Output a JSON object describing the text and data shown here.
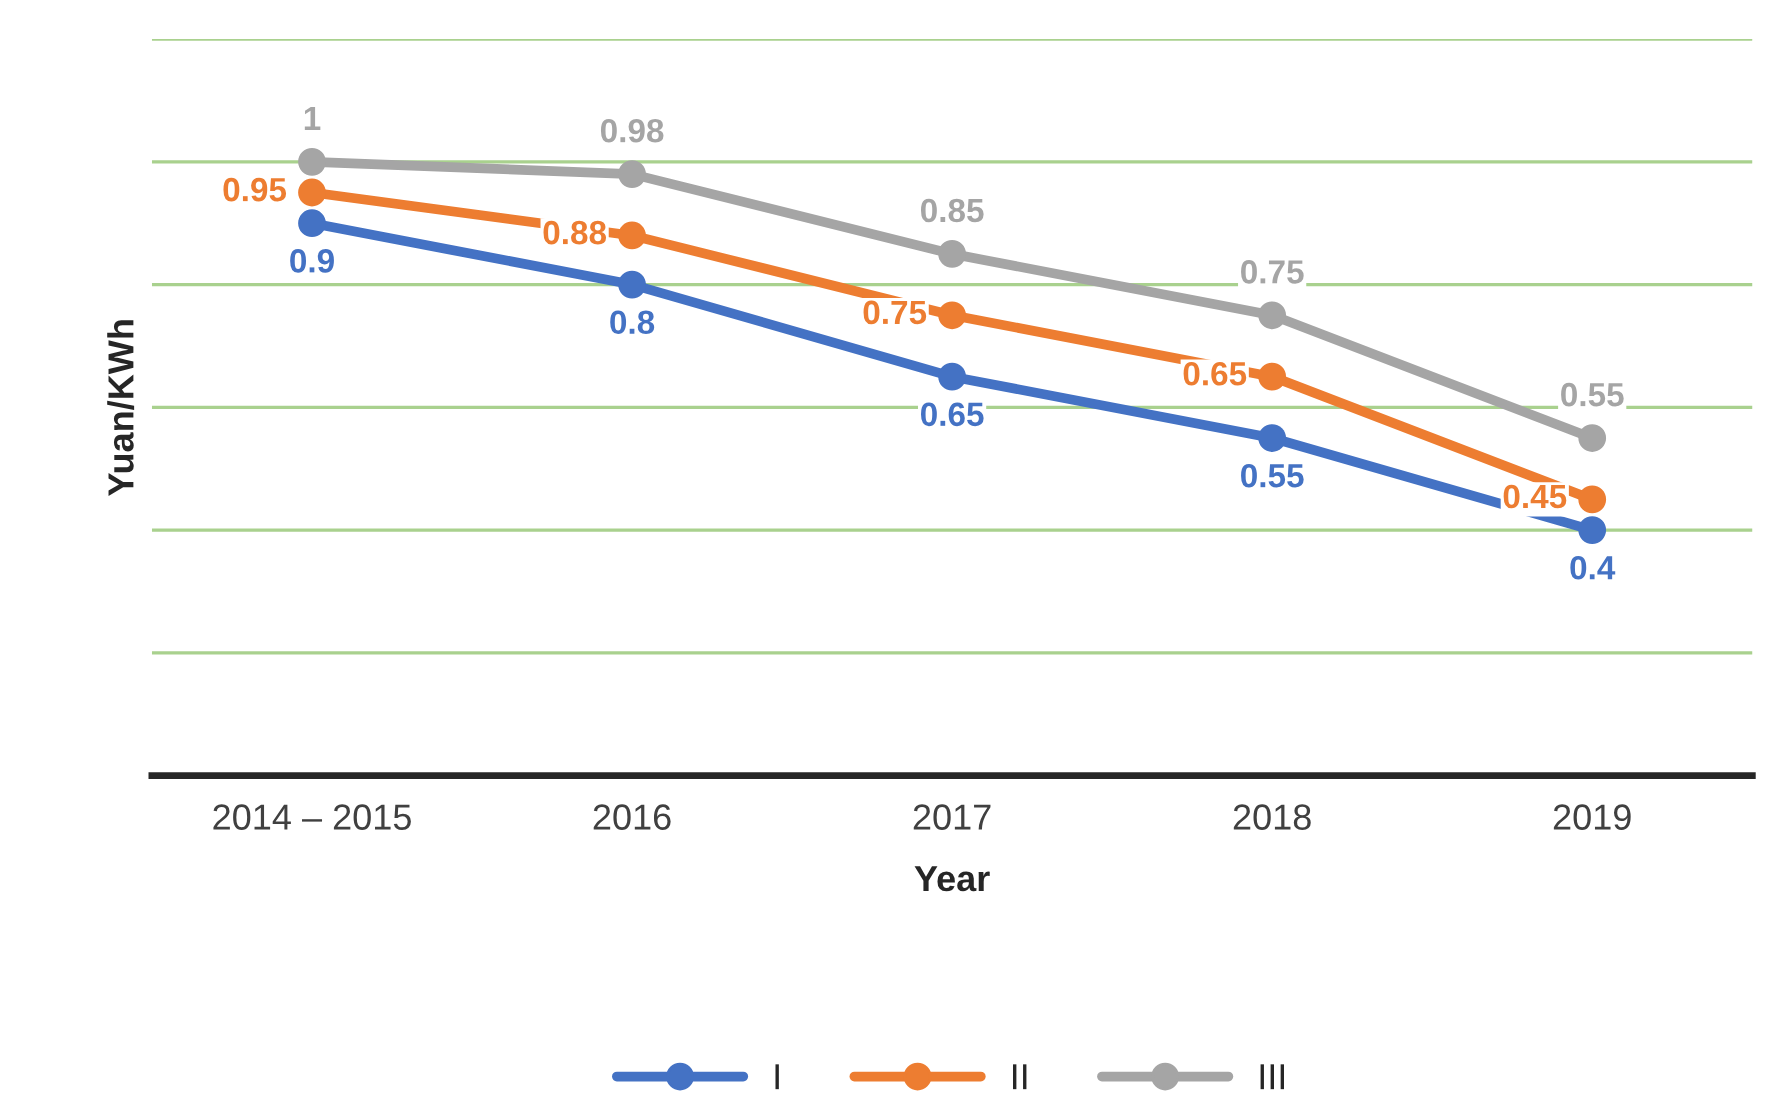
{
  "chart_data": {
    "type": "line",
    "xlabel": "Year",
    "ylabel": "Yuan/KWh",
    "categories": [
      "2014 – 2015",
      "2016",
      "2017",
      "2018",
      "2019"
    ],
    "series": [
      {
        "name": "I",
        "color": "#4472c4",
        "values": [
          0.9,
          0.8,
          0.65,
          0.55,
          0.4
        ]
      },
      {
        "name": "II",
        "color": "#ed7d31",
        "values": [
          0.95,
          0.88,
          0.75,
          0.65,
          0.45
        ]
      },
      {
        "name": "III",
        "color": "#a5a5a5",
        "values": [
          1,
          0.98,
          0.85,
          0.75,
          0.55
        ]
      }
    ],
    "ylim": [
      0,
      1.2
    ],
    "yticks": [
      {
        "value": 0,
        "label": null
      },
      {
        "value": 0.2,
        "label": null
      },
      {
        "value": 0.4,
        "label": null
      },
      {
        "value": 0.6,
        "label": null
      },
      {
        "value": 0.8,
        "label": null
      },
      {
        "value": 1,
        "label": null
      },
      {
        "value": 1.2,
        "label": null
      }
    ],
    "tick_labels": "x",
    "grid": "y",
    "legend": "bottom",
    "marker": "circle",
    "line_style": "solid",
    "data_labels": true
  }
}
